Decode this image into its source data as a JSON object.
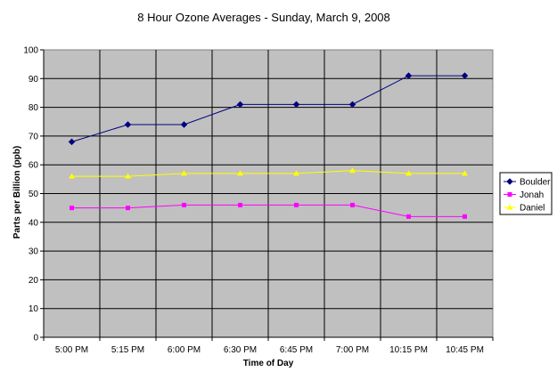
{
  "chart_data": {
    "type": "line",
    "title": "8 Hour Ozone Averages - Sunday, March 9, 2008",
    "xlabel": "Time of Day",
    "ylabel": "Parts per Billion (ppb)",
    "categories": [
      "5:00 PM",
      "5:15 PM",
      "6:00 PM",
      "6:30 PM",
      "6:45 PM",
      "7:00 PM",
      "10:15 PM",
      "10:45 PM"
    ],
    "ylim": [
      0,
      100
    ],
    "yticks": [
      "0",
      "10",
      "20",
      "30",
      "40",
      "50",
      "60",
      "70",
      "80",
      "90",
      "100"
    ],
    "grid": true,
    "legend_position": "right",
    "plot_background": "#c0c0c0",
    "series": [
      {
        "name": "Boulder",
        "color": "#000080",
        "marker": "diamond",
        "values": [
          68,
          74,
          74,
          81,
          81,
          81,
          91,
          91
        ]
      },
      {
        "name": "Jonah",
        "color": "#ff00ff",
        "marker": "square",
        "values": [
          45,
          45,
          46,
          46,
          46,
          46,
          42,
          42
        ]
      },
      {
        "name": "Daniel",
        "color": "#ffff00",
        "marker": "triangle",
        "values": [
          56,
          56,
          57,
          57,
          57,
          58,
          57,
          57
        ]
      }
    ]
  }
}
